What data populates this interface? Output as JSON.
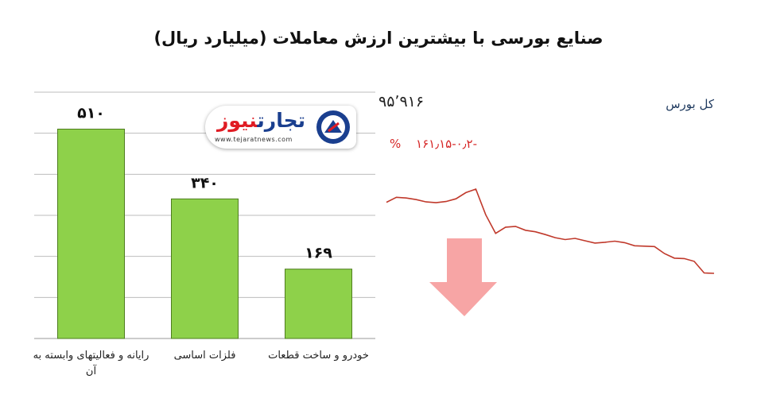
{
  "title": "صنایع بورسی با بیشترین ارزش معاملات  (میلیارد ریال)",
  "chart_data": [
    {
      "type": "bar",
      "title": "صنایع بورسی با بیشترین ارزش معاملات  (میلیارد ریال)",
      "categories": [
        "رایانه و فعالیتهای وابسته به آن",
        "فلزات اساسی",
        "خودرو و ساخت قطعات"
      ],
      "values": [
        510,
        340,
        169
      ],
      "value_labels": [
        "۵۱۰",
        "۳۴۰",
        "۱۶۹"
      ],
      "ylim": [
        0,
        600
      ],
      "grid": true,
      "bar_color": "#8ed14a",
      "bar_border": "#4e7d1f"
    },
    {
      "type": "line",
      "series_name": "کل بورس",
      "index_value": "۹۵٬۹۱۶",
      "change_abs": "-۱۶۱٫۱۵",
      "change_pct": "-۰٫۲ %",
      "values": [
        2512,
        2525,
        2523,
        2519,
        2513,
        2511,
        2514,
        2521,
        2537,
        2546,
        2480,
        2432,
        2448,
        2450,
        2440,
        2436,
        2429,
        2421,
        2416,
        2419,
        2413,
        2407,
        2409,
        2412,
        2408,
        2400,
        2399,
        2398,
        2380,
        2368,
        2367,
        2360,
        2330,
        2329
      ],
      "line_color": "#c0392b",
      "trend": "down",
      "arrow_color": "#f7a5a5"
    }
  ],
  "logo": {
    "name_part1": "تجارت",
    "name_part2": "نیوز",
    "url": "www.tejaratnews.com"
  }
}
